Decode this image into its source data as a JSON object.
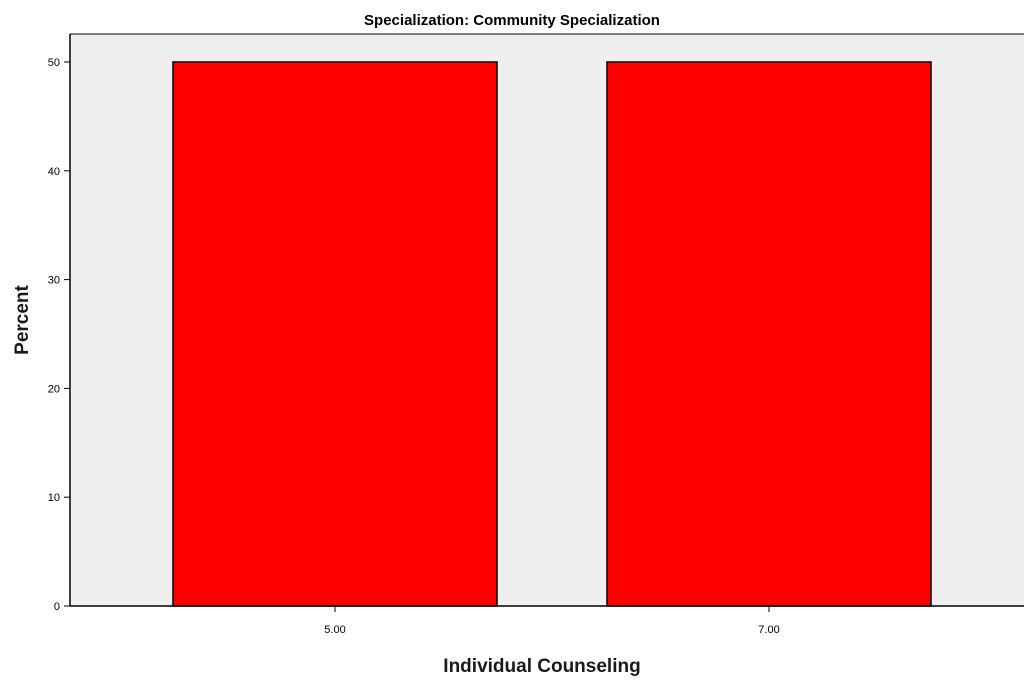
{
  "chart_data": {
    "type": "bar",
    "title": "Specialization: Community Specialization",
    "xlabel": "Individual Counseling",
    "ylabel": "Percent",
    "categories": [
      "5.00",
      "7.00"
    ],
    "values": [
      50,
      50
    ],
    "ylim": [
      0,
      50
    ],
    "yticks": [
      "0",
      "10",
      "20",
      "30",
      "40",
      "50"
    ],
    "grid": false,
    "colors": {
      "bar": "#ff0000",
      "plot_background": "#efefef",
      "outline": "#000000"
    }
  }
}
